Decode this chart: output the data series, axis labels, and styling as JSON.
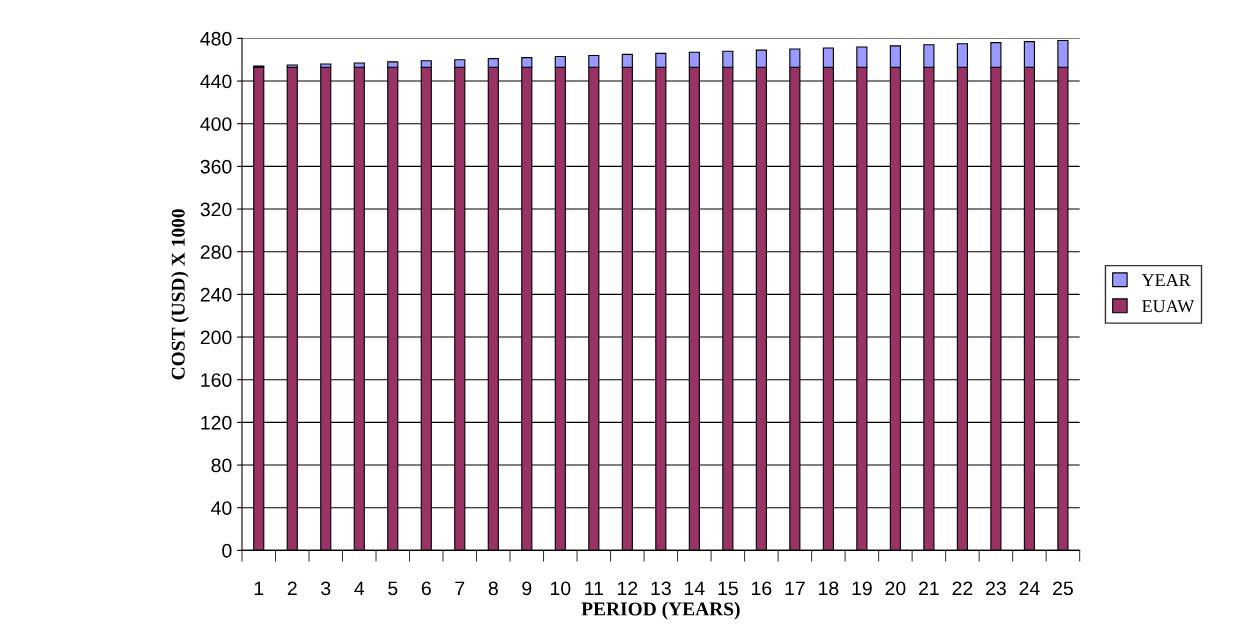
{
  "chart_data": {
    "type": "bar",
    "stacked": true,
    "xlabel": "PERIOD (YEARS)",
    "ylabel": "COST (USD) X 1000",
    "categories": [
      "1",
      "2",
      "3",
      "4",
      "5",
      "6",
      "7",
      "8",
      "9",
      "10",
      "11",
      "12",
      "13",
      "14",
      "15",
      "16",
      "17",
      "18",
      "19",
      "20",
      "21",
      "22",
      "23",
      "24",
      "25"
    ],
    "series": [
      {
        "name": "EUAW",
        "color": "#993366",
        "values": [
          453,
          453,
          453,
          453,
          453,
          453,
          453,
          453,
          453,
          453,
          453,
          453,
          453,
          453,
          453,
          453,
          453,
          453,
          453,
          453,
          453,
          453,
          453,
          453,
          453
        ]
      },
      {
        "name": "YEAR",
        "color": "#9999ff",
        "values": [
          1,
          2,
          3,
          4,
          5,
          6,
          7,
          8,
          9,
          10,
          11,
          12,
          13,
          14,
          15,
          16,
          17,
          18,
          19,
          20,
          21,
          22,
          23,
          24,
          25
        ]
      }
    ],
    "ylim": [
      0,
      480
    ],
    "yticks": [
      0,
      40,
      80,
      120,
      160,
      200,
      240,
      280,
      320,
      360,
      400,
      440,
      480
    ],
    "grid": "y",
    "legend": "right"
  }
}
